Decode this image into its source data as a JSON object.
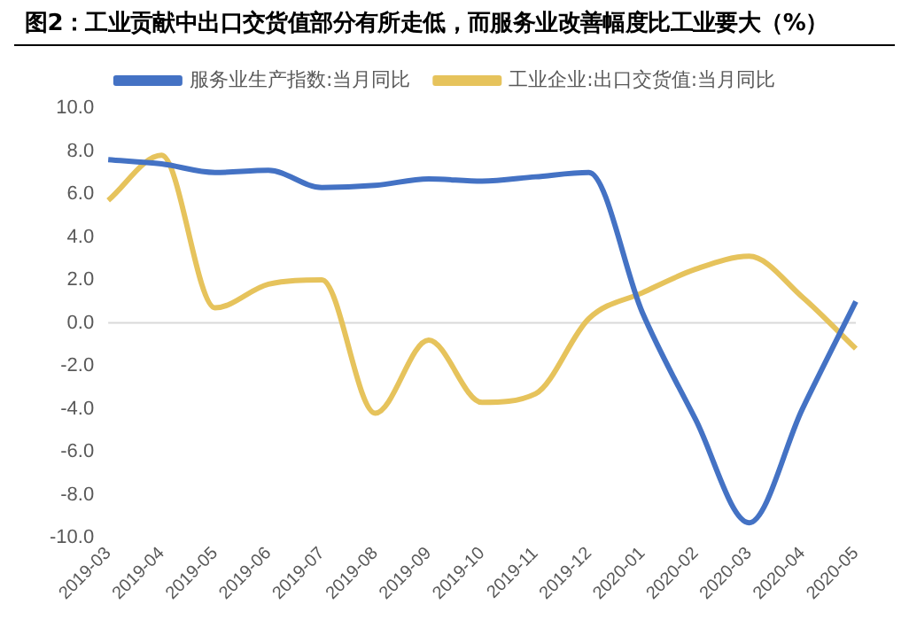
{
  "chart_data": {
    "type": "line",
    "title": "图2：工业贡献中出口交货值部分有所走低，而服务业改善幅度比工业要大（%）",
    "categories": [
      "2019-03",
      "2019-04",
      "2019-05",
      "2019-06",
      "2019-07",
      "2019-08",
      "2019-09",
      "2019-10",
      "2019-11",
      "2019-12",
      "2020-01",
      "2020-02",
      "2020-03",
      "2020-04",
      "2020-05"
    ],
    "series": [
      {
        "name": "服务业生产指数:当月同比",
        "color": "#4472c4",
        "values": [
          7.6,
          7.4,
          7.0,
          7.1,
          6.3,
          6.4,
          6.7,
          6.6,
          6.8,
          7.0,
          0.5,
          -4.5,
          -9.3,
          -4.0,
          1.0
        ]
      },
      {
        "name": "工业企业:出口交货值:当月同比",
        "color": "#e6c35c",
        "values": [
          5.7,
          7.8,
          0.7,
          1.8,
          2.0,
          -4.2,
          -0.8,
          -3.7,
          -3.3,
          0.2,
          1.4,
          2.5,
          3.1,
          1.2,
          -1.2
        ]
      }
    ],
    "ylim": [
      -10,
      10
    ],
    "yticks": [
      {
        "value": -10,
        "label": "-10.0"
      },
      {
        "value": -8,
        "label": "-8.0"
      },
      {
        "value": -6,
        "label": "-6.0"
      },
      {
        "value": -4,
        "label": "-4.0"
      },
      {
        "value": -2,
        "label": "-2.0"
      },
      {
        "value": 0,
        "label": "0.0"
      },
      {
        "value": 2,
        "label": "2.0"
      },
      {
        "value": 4,
        "label": "4.0"
      },
      {
        "value": 6,
        "label": "6.0"
      },
      {
        "value": 8,
        "label": "8.0"
      },
      {
        "value": 10,
        "label": "10.0"
      }
    ],
    "ref_lines": [
      {
        "axis": "y",
        "value": 0,
        "color": "#d9d9d9"
      }
    ],
    "grid": false,
    "legend": "top",
    "marker": "none",
    "line_style": "solid"
  }
}
